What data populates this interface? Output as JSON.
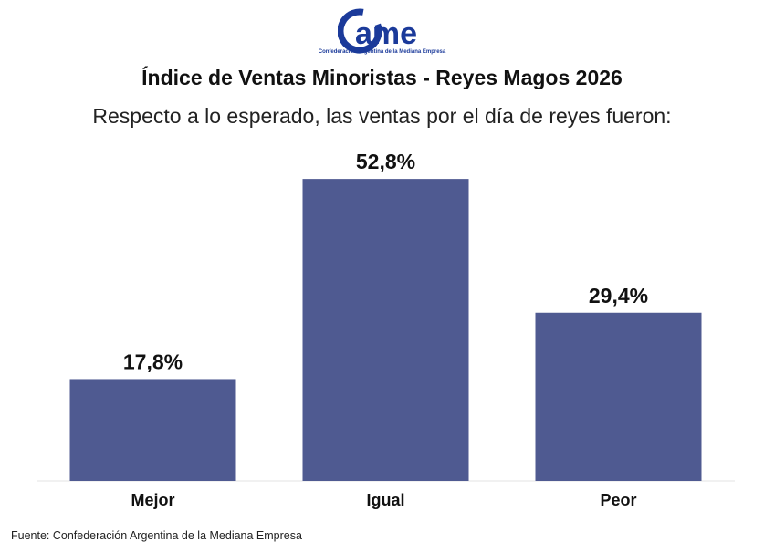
{
  "logo": {
    "brand": "CAME",
    "tagline": "Confederación Argentina de la Mediana Empresa",
    "color": "#1b3a9a"
  },
  "chart_data": {
    "type": "bar",
    "title": "Índice de Ventas Minoristas - Reyes Magos 2026",
    "subtitle": "Respecto a lo esperado, las ventas por el día de reyes fueron:",
    "categories": [
      "Mejor",
      "Igual",
      "Peor"
    ],
    "values": [
      17.8,
      52.8,
      29.4
    ],
    "data_labels": [
      "17,8%",
      "52,8%",
      "29,4%"
    ],
    "ylim": [
      0,
      60
    ],
    "grid": false,
    "bar_color": "#4f5a91"
  },
  "source": "Fuente: Confederación Argentina de la Mediana Empresa"
}
